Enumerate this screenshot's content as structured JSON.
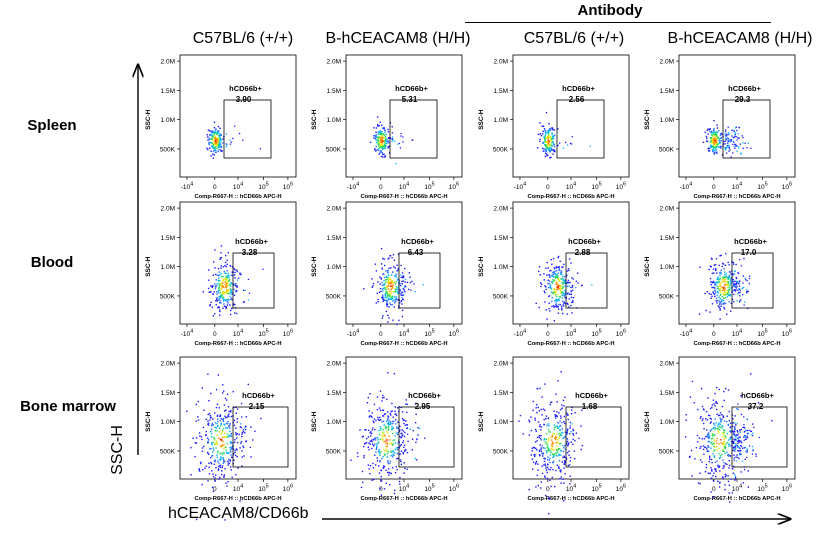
{
  "group_label": "Antibody",
  "column_headers": [
    "C57BL/6 (+/+)",
    "B-hCEACAM8 (H/H)",
    "C57BL/6 (+/+)",
    "B-hCEACAM8 (H/H)"
  ],
  "row_labels": [
    "Spleen",
    "Blood",
    "Bone marrow"
  ],
  "outer_axes": {
    "y": "SSC-H",
    "x": "hCEACAM8/CD66b"
  },
  "panel_axes": {
    "y_ticks": [
      "2.0M",
      "1.5M",
      "1.0M",
      "500K"
    ],
    "y_label": "SSC-H",
    "x_ticks": [
      "-10^4",
      "0",
      "10^4",
      "10^5",
      "10^6"
    ],
    "x_label": "Comp-R667-H :: hCD66b APC-H"
  },
  "chart_data": {
    "type": "scatter",
    "title": "",
    "xlabel": "Comp-R667-H :: hCD66b APC-H",
    "ylabel": "SSC-H",
    "gate_name": "hCD66b+",
    "panels": [
      {
        "row": "Spleen",
        "column": "C57BL/6 (+/+)",
        "antibody": false,
        "gate_percent": "3.90"
      },
      {
        "row": "Spleen",
        "column": "B-hCEACAM8 (H/H)",
        "antibody": false,
        "gate_percent": "5.31"
      },
      {
        "row": "Spleen",
        "column": "C57BL/6 (+/+)",
        "antibody": true,
        "gate_percent": "2.56"
      },
      {
        "row": "Spleen",
        "column": "B-hCEACAM8 (H/H)",
        "antibody": true,
        "gate_percent": "29.3"
      },
      {
        "row": "Blood",
        "column": "C57BL/6 (+/+)",
        "antibody": false,
        "gate_percent": "3.28"
      },
      {
        "row": "Blood",
        "column": "B-hCEACAM8 (H/H)",
        "antibody": false,
        "gate_percent": "6.43"
      },
      {
        "row": "Blood",
        "column": "C57BL/6 (+/+)",
        "antibody": true,
        "gate_percent": "2.88"
      },
      {
        "row": "Blood",
        "column": "B-hCEACAM8 (H/H)",
        "antibody": true,
        "gate_percent": "17.0"
      },
      {
        "row": "Bone marrow",
        "column": "C57BL/6 (+/+)",
        "antibody": false,
        "gate_percent": "2.15"
      },
      {
        "row": "Bone marrow",
        "column": "B-hCEACAM8 (H/H)",
        "antibody": false,
        "gate_percent": "2.95"
      },
      {
        "row": "Bone marrow",
        "column": "C57BL/6 (+/+)",
        "antibody": true,
        "gate_percent": "1.68"
      },
      {
        "row": "Bone marrow",
        "column": "B-hCEACAM8 (H/H)",
        "antibody": true,
        "gate_percent": "37.2"
      }
    ]
  }
}
